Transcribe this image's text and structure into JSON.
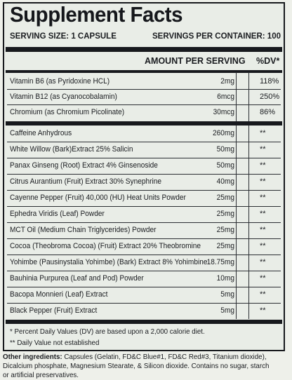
{
  "title": "Supplement Facts",
  "serving_size": "SERVING SIZE: 1 CAPSULE",
  "servings_per_container": "SERVINGS PER CONTAINER: 100",
  "header": {
    "amount": "AMOUNT PER SERVING",
    "dv": "%DV*"
  },
  "vitamins": [
    {
      "name": "Vitamin B6 (as Pyridoxine HCL)",
      "amount": "2mg",
      "dv": "118%"
    },
    {
      "name": "Vitamin B12 (as Cyanocobalamin)",
      "amount": "6mcg",
      "dv": "250%"
    },
    {
      "name": "Chromium (as Chromium Picolinate)",
      "amount": "30mcg",
      "dv": "86%"
    }
  ],
  "ingredients": [
    {
      "name": "Caffeine Anhydrous",
      "amount": "260mg",
      "dv": "**"
    },
    {
      "name": "White Willow (Bark)Extract 25% Salicin",
      "amount": "50mg",
      "dv": "**"
    },
    {
      "name": "Panax Ginseng (Root) Extract 4% Ginsenoside",
      "amount": "50mg",
      "dv": "**"
    },
    {
      "name": "Citrus Aurantium (Fruit) Extract 30% Synephrine",
      "amount": "40mg",
      "dv": "**"
    },
    {
      "name": "Cayenne Pepper (Fruit) 40,000 (HU) Heat Units Powder",
      "amount": "25mg",
      "dv": "**"
    },
    {
      "name": "Ephedra Viridis (Leaf) Powder",
      "amount": "25mg",
      "dv": "**"
    },
    {
      "name": "MCT Oil (Medium Chain Triglycerides) Powder",
      "amount": "25mg",
      "dv": "**"
    },
    {
      "name": "Cocoa (Theobroma Cocoa) (Fruit) Extract 20% Theobromine",
      "amount": "25mg",
      "dv": "**"
    },
    {
      "name": "Yohimbe (Pausinystalia Yohimbe) (Bark) Extract 8% Yohimbine",
      "amount": "18.75mg",
      "dv": "**"
    },
    {
      "name": "Bauhinia Purpurea (Leaf and Pod) Powder",
      "amount": "10mg",
      "dv": "**"
    },
    {
      "name": "Bacopa Monnieri (Leaf) Extract",
      "amount": "5mg",
      "dv": "**"
    },
    {
      "name": "Black Pepper (Fruit) Extract",
      "amount": "5mg",
      "dv": "**"
    }
  ],
  "footnotes": [
    "* Percent Daily Values (DV) are based upon a 2,000 calorie diet.",
    "** Daily Value not established"
  ],
  "other_ingredients": {
    "label": "Other ingredients:",
    "text": "Capsules (Gelatin, FD&C Blue#1, FD&C Red#3, Titanium dioxide), Dicalcium phosphate, Magnesium Stearate, & Silicon dioxide. Contains no sugar, starch or artificial preservatives."
  }
}
